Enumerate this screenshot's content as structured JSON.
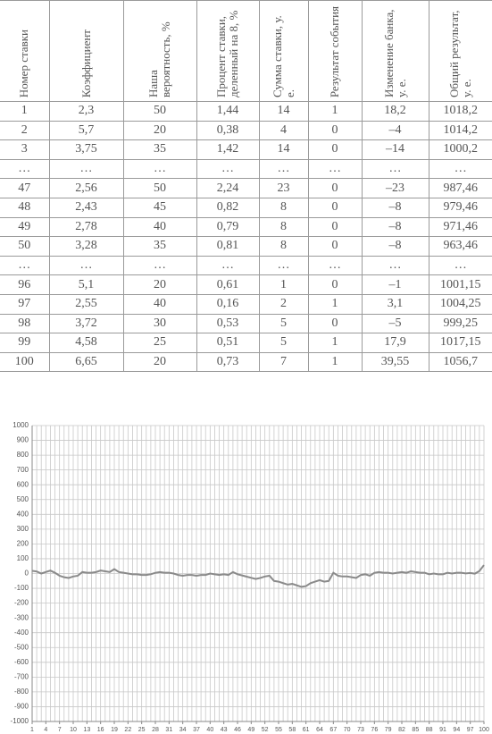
{
  "table": {
    "header": [
      "Номер ставки",
      "Коэффициент",
      "Наша вероятность, %",
      "Процент ставки, деленный на 8, %",
      "Сумма ставки, у. е.",
      "Результат события",
      "Изменение банка, у. е.",
      "Общий результат, у. е."
    ],
    "rows": [
      [
        "1",
        "2,3",
        "50",
        "1,44",
        "14",
        "1",
        "18,2",
        "1018,2"
      ],
      [
        "2",
        "5,7",
        "20",
        "0,38",
        "4",
        "0",
        "–4",
        "1014,2"
      ],
      [
        "3",
        "3,75",
        "35",
        "1,42",
        "14",
        "0",
        "–14",
        "1000,2"
      ],
      [
        "…",
        "…",
        "…",
        "…",
        "…",
        "…",
        "…",
        "…"
      ],
      [
        "47",
        "2,56",
        "50",
        "2,24",
        "23",
        "0",
        "–23",
        "987,46"
      ],
      [
        "48",
        "2,43",
        "45",
        "0,82",
        "8",
        "0",
        "–8",
        "979,46"
      ],
      [
        "49",
        "2,78",
        "40",
        "0,79",
        "8",
        "0",
        "–8",
        "971,46"
      ],
      [
        "50",
        "3,28",
        "35",
        "0,81",
        "8",
        "0",
        "–8",
        "963,46"
      ],
      [
        "…",
        "…",
        "…",
        "…",
        "…",
        "…",
        "…",
        "…"
      ],
      [
        "96",
        "5,1",
        "20",
        "0,61",
        "1",
        "0",
        "–1",
        "1001,15"
      ],
      [
        "97",
        "2,55",
        "40",
        "0,16",
        "2",
        "1",
        "3,1",
        "1004,25"
      ],
      [
        "98",
        "3,72",
        "30",
        "0,53",
        "5",
        "0",
        "–5",
        "999,25"
      ],
      [
        "99",
        "4,58",
        "25",
        "0,51",
        "5",
        "1",
        "17,9",
        "1017,15"
      ],
      [
        "100",
        "6,65",
        "20",
        "0,73",
        "7",
        "1",
        "39,55",
        "1056,7"
      ]
    ]
  },
  "chart_data": {
    "type": "line",
    "color": "#8a8a8a",
    "grid": true,
    "x": [
      1,
      2,
      3,
      4,
      5,
      6,
      7,
      8,
      9,
      10,
      11,
      12,
      13,
      14,
      15,
      16,
      17,
      18,
      19,
      20,
      21,
      22,
      23,
      24,
      25,
      26,
      27,
      28,
      29,
      30,
      31,
      32,
      33,
      34,
      35,
      36,
      37,
      38,
      39,
      40,
      41,
      42,
      43,
      44,
      45,
      46,
      47,
      48,
      49,
      50,
      51,
      52,
      53,
      54,
      55,
      56,
      57,
      58,
      59,
      60,
      61,
      62,
      63,
      64,
      65,
      66,
      67,
      68,
      69,
      70,
      71,
      72,
      73,
      74,
      75,
      76,
      77,
      78,
      79,
      80,
      81,
      82,
      83,
      84,
      85,
      86,
      87,
      88,
      89,
      90,
      91,
      92,
      93,
      94,
      95,
      96,
      97,
      98,
      99,
      100
    ],
    "values": [
      18,
      14,
      0,
      10,
      20,
      5,
      -15,
      -25,
      -30,
      -20,
      -15,
      10,
      5,
      5,
      10,
      20,
      15,
      10,
      30,
      10,
      5,
      0,
      -5,
      -5,
      -10,
      -10,
      -5,
      5,
      10,
      5,
      5,
      0,
      -10,
      -15,
      -10,
      -10,
      -15,
      -10,
      -10,
      0,
      -5,
      -10,
      -5,
      -10,
      10,
      -5,
      -13,
      -21,
      -29,
      -37,
      -30,
      -20,
      -15,
      -50,
      -55,
      -65,
      -75,
      -70,
      -80,
      -90,
      -85,
      -65,
      -55,
      -45,
      -55,
      -50,
      5,
      -15,
      -20,
      -20,
      -25,
      -30,
      -10,
      -5,
      -15,
      5,
      10,
      5,
      5,
      0,
      5,
      10,
      5,
      15,
      10,
      5,
      5,
      -5,
      0,
      -5,
      -5,
      5,
      0,
      5,
      5,
      1,
      4,
      -1,
      17,
      57
    ],
    "xlim": [
      1,
      100
    ],
    "xticks": [
      1,
      4,
      7,
      10,
      13,
      16,
      19,
      22,
      25,
      28,
      31,
      34,
      37,
      40,
      43,
      46,
      49,
      52,
      55,
      58,
      61,
      64,
      67,
      70,
      73,
      76,
      79,
      82,
      85,
      88,
      91,
      94,
      97,
      100
    ],
    "ylim": [
      -1000,
      1000
    ],
    "yticks": [
      1000,
      900,
      800,
      700,
      600,
      500,
      400,
      300,
      200,
      100,
      0,
      -100,
      -200,
      -300,
      -400,
      -500,
      -600,
      -700,
      -800,
      -900,
      -1000
    ]
  }
}
